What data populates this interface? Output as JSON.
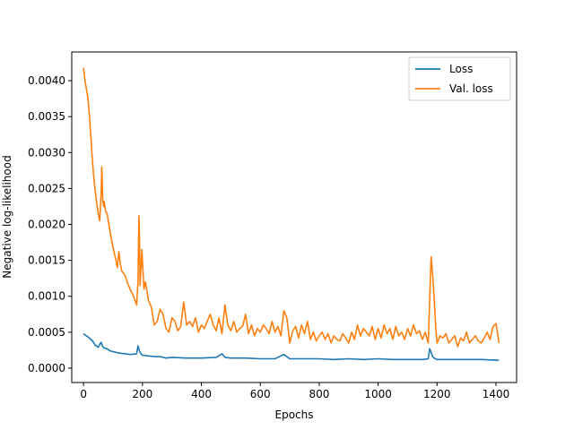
{
  "chart_data": {
    "type": "line",
    "title": "",
    "xlabel": "Epochs",
    "ylabel": "Negative log-likelihood",
    "xlim": [
      -40,
      1470
    ],
    "ylim": [
      -0.0002,
      0.0044
    ],
    "xticks": [
      0,
      200,
      400,
      600,
      800,
      1000,
      1200,
      1400
    ],
    "yticks": [
      0.0,
      0.0005,
      0.001,
      0.0015,
      0.002,
      0.0025,
      0.003,
      0.0035,
      0.004
    ],
    "ytick_labels": [
      "0.0000",
      "0.0005",
      "0.0010",
      "0.0015",
      "0.0020",
      "0.0025",
      "0.0030",
      "0.0035",
      "0.0040"
    ],
    "xtick_labels": [
      "0",
      "200",
      "400",
      "600",
      "800",
      "1000",
      "1200",
      "1400"
    ],
    "grid": false,
    "legend_position": "upper-right",
    "series": [
      {
        "name": "Loss",
        "color": "#1f77b4",
        "x": [
          0,
          10,
          20,
          30,
          40,
          50,
          55,
          60,
          65,
          70,
          80,
          90,
          100,
          120,
          140,
          160,
          180,
          185,
          190,
          195,
          200,
          220,
          240,
          260,
          280,
          300,
          350,
          400,
          450,
          470,
          480,
          500,
          550,
          600,
          650,
          680,
          700,
          750,
          800,
          850,
          900,
          950,
          1000,
          1050,
          1100,
          1150,
          1170,
          1175,
          1180,
          1185,
          1190,
          1200,
          1250,
          1300,
          1350,
          1400,
          1410
        ],
        "y": [
          0.00048,
          0.00045,
          0.00042,
          0.00038,
          0.00032,
          0.00029,
          0.00033,
          0.00036,
          0.0003,
          0.00028,
          0.00027,
          0.00024,
          0.00023,
          0.00021,
          0.0002,
          0.00019,
          0.0002,
          0.00031,
          0.00024,
          0.0002,
          0.00018,
          0.00017,
          0.00016,
          0.00016,
          0.00014,
          0.00015,
          0.00014,
          0.00014,
          0.00015,
          0.0002,
          0.00015,
          0.00014,
          0.00014,
          0.00013,
          0.00013,
          0.00019,
          0.00013,
          0.00013,
          0.00013,
          0.00012,
          0.00013,
          0.00012,
          0.00013,
          0.00012,
          0.00012,
          0.00012,
          0.00013,
          0.00027,
          0.00022,
          0.00016,
          0.00014,
          0.00012,
          0.00012,
          0.00012,
          0.00012,
          0.00011,
          0.00011
        ]
      },
      {
        "name": "Val. loss",
        "color": "#ff7f0e",
        "x": [
          0,
          5,
          10,
          15,
          20,
          25,
          30,
          35,
          40,
          45,
          50,
          55,
          60,
          62,
          65,
          68,
          70,
          75,
          80,
          90,
          100,
          110,
          115,
          120,
          125,
          130,
          140,
          150,
          160,
          170,
          180,
          185,
          188,
          190,
          192,
          195,
          198,
          200,
          205,
          210,
          220,
          230,
          240,
          250,
          260,
          270,
          280,
          290,
          300,
          310,
          320,
          330,
          340,
          350,
          360,
          370,
          380,
          390,
          400,
          410,
          420,
          430,
          440,
          450,
          460,
          470,
          480,
          490,
          500,
          510,
          520,
          530,
          540,
          550,
          560,
          570,
          580,
          590,
          600,
          610,
          620,
          630,
          640,
          650,
          660,
          670,
          680,
          690,
          700,
          710,
          720,
          730,
          740,
          750,
          760,
          770,
          780,
          790,
          800,
          810,
          820,
          830,
          840,
          850,
          860,
          870,
          880,
          890,
          900,
          910,
          920,
          930,
          940,
          950,
          960,
          970,
          980,
          990,
          1000,
          1010,
          1020,
          1030,
          1040,
          1050,
          1060,
          1070,
          1080,
          1090,
          1100,
          1110,
          1120,
          1130,
          1140,
          1150,
          1160,
          1170,
          1175,
          1180,
          1185,
          1190,
          1195,
          1200,
          1210,
          1220,
          1230,
          1240,
          1250,
          1260,
          1270,
          1280,
          1290,
          1300,
          1310,
          1320,
          1330,
          1340,
          1350,
          1360,
          1370,
          1380,
          1390,
          1400,
          1405,
          1410
        ],
        "y": [
          0.00418,
          0.004,
          0.00388,
          0.00375,
          0.00352,
          0.0032,
          0.0029,
          0.00265,
          0.00245,
          0.0023,
          0.00215,
          0.00205,
          0.00245,
          0.0028,
          0.00235,
          0.00225,
          0.00232,
          0.00218,
          0.00215,
          0.0019,
          0.00168,
          0.0015,
          0.0014,
          0.00162,
          0.00145,
          0.00135,
          0.0013,
          0.00118,
          0.00108,
          0.001,
          0.00088,
          0.0012,
          0.00212,
          0.00185,
          0.00115,
          0.0014,
          0.00165,
          0.0015,
          0.0011,
          0.0012,
          0.00095,
          0.00085,
          0.0006,
          0.00065,
          0.00082,
          0.00075,
          0.00055,
          0.0005,
          0.0007,
          0.00065,
          0.00052,
          0.00058,
          0.00092,
          0.0006,
          0.00065,
          0.00058,
          0.0007,
          0.0005,
          0.0006,
          0.00055,
          0.00065,
          0.00075,
          0.0006,
          0.00052,
          0.0007,
          0.00048,
          0.00088,
          0.0006,
          0.00052,
          0.00065,
          0.0005,
          0.00055,
          0.00058,
          0.00075,
          0.00048,
          0.0006,
          0.00045,
          0.00055,
          0.0005,
          0.0006,
          0.00055,
          0.00048,
          0.00065,
          0.0005,
          0.00058,
          0.00045,
          0.0008,
          0.0007,
          0.00035,
          0.00052,
          0.00058,
          0.00042,
          0.0006,
          0.00048,
          0.00065,
          0.0004,
          0.0005,
          0.00038,
          0.00045,
          0.0005,
          0.0004,
          0.00048,
          0.00035,
          0.00045,
          0.0004,
          0.00038,
          0.00048,
          0.00042,
          0.00035,
          0.0005,
          0.0004,
          0.0006,
          0.00045,
          0.00055,
          0.0005,
          0.00045,
          0.00058,
          0.0004,
          0.00055,
          0.00042,
          0.0006,
          0.00048,
          0.00055,
          0.0004,
          0.00058,
          0.00045,
          0.0005,
          0.0004,
          0.00055,
          0.00045,
          0.0006,
          0.00048,
          0.00052,
          0.0004,
          0.0005,
          0.00035,
          0.00095,
          0.00155,
          0.0013,
          0.001,
          0.0006,
          0.00035,
          0.00045,
          0.00042,
          0.00048,
          0.00035,
          0.0004,
          0.00045,
          0.0003,
          0.00042,
          0.00038,
          0.0005,
          0.00035,
          0.0004,
          0.00045,
          0.00038,
          0.00035,
          0.00042,
          0.0005,
          0.0004,
          0.00058,
          0.00062,
          0.0005,
          0.00035
        ]
      }
    ]
  }
}
